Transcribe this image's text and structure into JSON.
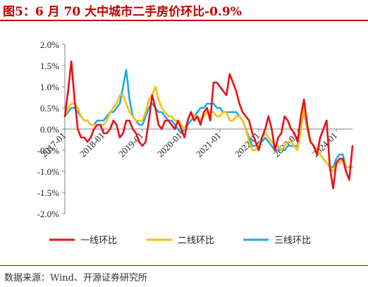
{
  "figure": {
    "title": "图5：6 月 70 大中城市二手房价环比-0.9%",
    "source": "数据来源：Wind、开源证券研究所"
  },
  "chart_data": {
    "type": "line",
    "ylim": [
      -2.0,
      2.0
    ],
    "y_ticks": [
      2.0,
      1.5,
      1.0,
      0.5,
      0.0,
      -0.5,
      -1.0,
      -1.5,
      -2.0
    ],
    "y_tick_labels": [
      "2.0%",
      "1.5%",
      "1.0%",
      "0.5%",
      "0.0%",
      "-0.5%",
      "-1.0%",
      "-1.5%",
      "-2.0%"
    ],
    "x_start": "2017-01",
    "x_end": "2024-06",
    "x_tick_labels": [
      "2017-01",
      "2018-01",
      "2019-01",
      "2020-01",
      "2021-01",
      "2022-01",
      "2023-01",
      "2024-01"
    ],
    "grid": false,
    "legend_position": "bottom",
    "series": [
      {
        "name": "一线环比",
        "color": "#e8111a",
        "values": [
          0.3,
          0.9,
          1.6,
          0.7,
          0.0,
          -0.2,
          -0.2,
          -0.3,
          -0.2,
          0.0,
          0.1,
          0.1,
          -0.1,
          -0.1,
          0.0,
          0.2,
          0.1,
          -0.2,
          -0.1,
          0.2,
          0.2,
          0.0,
          -0.1,
          -0.3,
          -0.4,
          -0.3,
          0.2,
          0.8,
          0.5,
          0.1,
          0.0,
          0.2,
          0.2,
          0.1,
          0.0,
          0.2,
          0.0,
          -0.2,
          0.2,
          0.4,
          0.2,
          0.3,
          0.1,
          0.4,
          0.5,
          0.2,
          1.1,
          1.1,
          1.0,
          0.9,
          0.8,
          1.3,
          1.1,
          0.9,
          0.6,
          0.4,
          0.3,
          0.2,
          -0.1,
          -0.3,
          -0.5,
          -0.2,
          0.0,
          0.3,
          0.0,
          -0.5,
          -0.2,
          -0.1,
          0.3,
          0.2,
          0.0,
          -0.1,
          -0.3,
          0.3,
          0.7,
          0.1,
          -0.3,
          -0.4,
          -0.6,
          -0.2,
          0.0,
          0.2,
          -0.9,
          -1.4,
          -0.8,
          -0.7,
          -0.7,
          -1.0,
          -1.2,
          -0.4
        ]
      },
      {
        "name": "二线环比",
        "color": "#fbbf0e",
        "values": [
          0.3,
          0.5,
          0.6,
          0.6,
          0.5,
          0.3,
          0.2,
          0.2,
          0.1,
          0.1,
          0.1,
          0.1,
          0.1,
          0.2,
          0.4,
          0.5,
          0.6,
          0.8,
          0.8,
          0.6,
          0.4,
          0.3,
          0.2,
          0.2,
          0.2,
          0.4,
          0.7,
          0.8,
          1.0,
          0.7,
          0.5,
          0.4,
          0.3,
          0.3,
          0.2,
          0.2,
          0.1,
          0.0,
          0.2,
          0.4,
          0.3,
          0.3,
          0.2,
          0.3,
          0.4,
          0.4,
          0.4,
          0.3,
          0.3,
          0.4,
          0.4,
          0.2,
          0.2,
          0.3,
          0.3,
          0.2,
          0.0,
          -0.3,
          -0.5,
          -0.5,
          -0.4,
          -0.2,
          -0.1,
          -0.2,
          -0.3,
          -0.4,
          -0.4,
          -0.5,
          -0.4,
          -0.3,
          -0.3,
          -0.4,
          -0.5,
          0.0,
          0.5,
          0.0,
          -0.3,
          -0.4,
          -0.5,
          -0.6,
          -0.7,
          -0.8,
          -0.9,
          -1.0,
          -0.8,
          -0.8,
          -0.7,
          -0.9,
          -0.9,
          -0.9
        ]
      },
      {
        "name": "三线环比",
        "color": "#1caae4",
        "values": [
          0.3,
          0.4,
          0.5,
          0.5,
          0.4,
          0.3,
          0.2,
          0.2,
          0.1,
          0.1,
          0.2,
          0.2,
          0.2,
          0.3,
          0.4,
          0.4,
          0.5,
          0.6,
          1.0,
          1.4,
          0.7,
          0.3,
          0.2,
          0.1,
          0.1,
          0.3,
          0.5,
          0.6,
          0.5,
          0.4,
          0.4,
          0.3,
          0.2,
          0.2,
          0.1,
          0.0,
          -0.1,
          0.0,
          0.1,
          0.2,
          0.3,
          0.4,
          0.5,
          0.5,
          0.6,
          0.6,
          0.6,
          0.5,
          0.5,
          0.4,
          0.4,
          0.4,
          0.4,
          0.4,
          0.3,
          0.2,
          0.0,
          -0.2,
          -0.4,
          -0.4,
          -0.3,
          -0.3,
          -0.2,
          -0.3,
          -0.4,
          -0.5,
          -0.5,
          -0.5,
          -0.5,
          -0.4,
          -0.4,
          -0.4,
          -0.4,
          0.1,
          0.4,
          0.0,
          -0.3,
          -0.4,
          -0.5,
          -0.6,
          -0.7,
          -0.8,
          -0.9,
          -0.9,
          -0.7,
          -0.6,
          -0.6,
          -0.9,
          -0.9,
          -0.9
        ]
      }
    ]
  }
}
